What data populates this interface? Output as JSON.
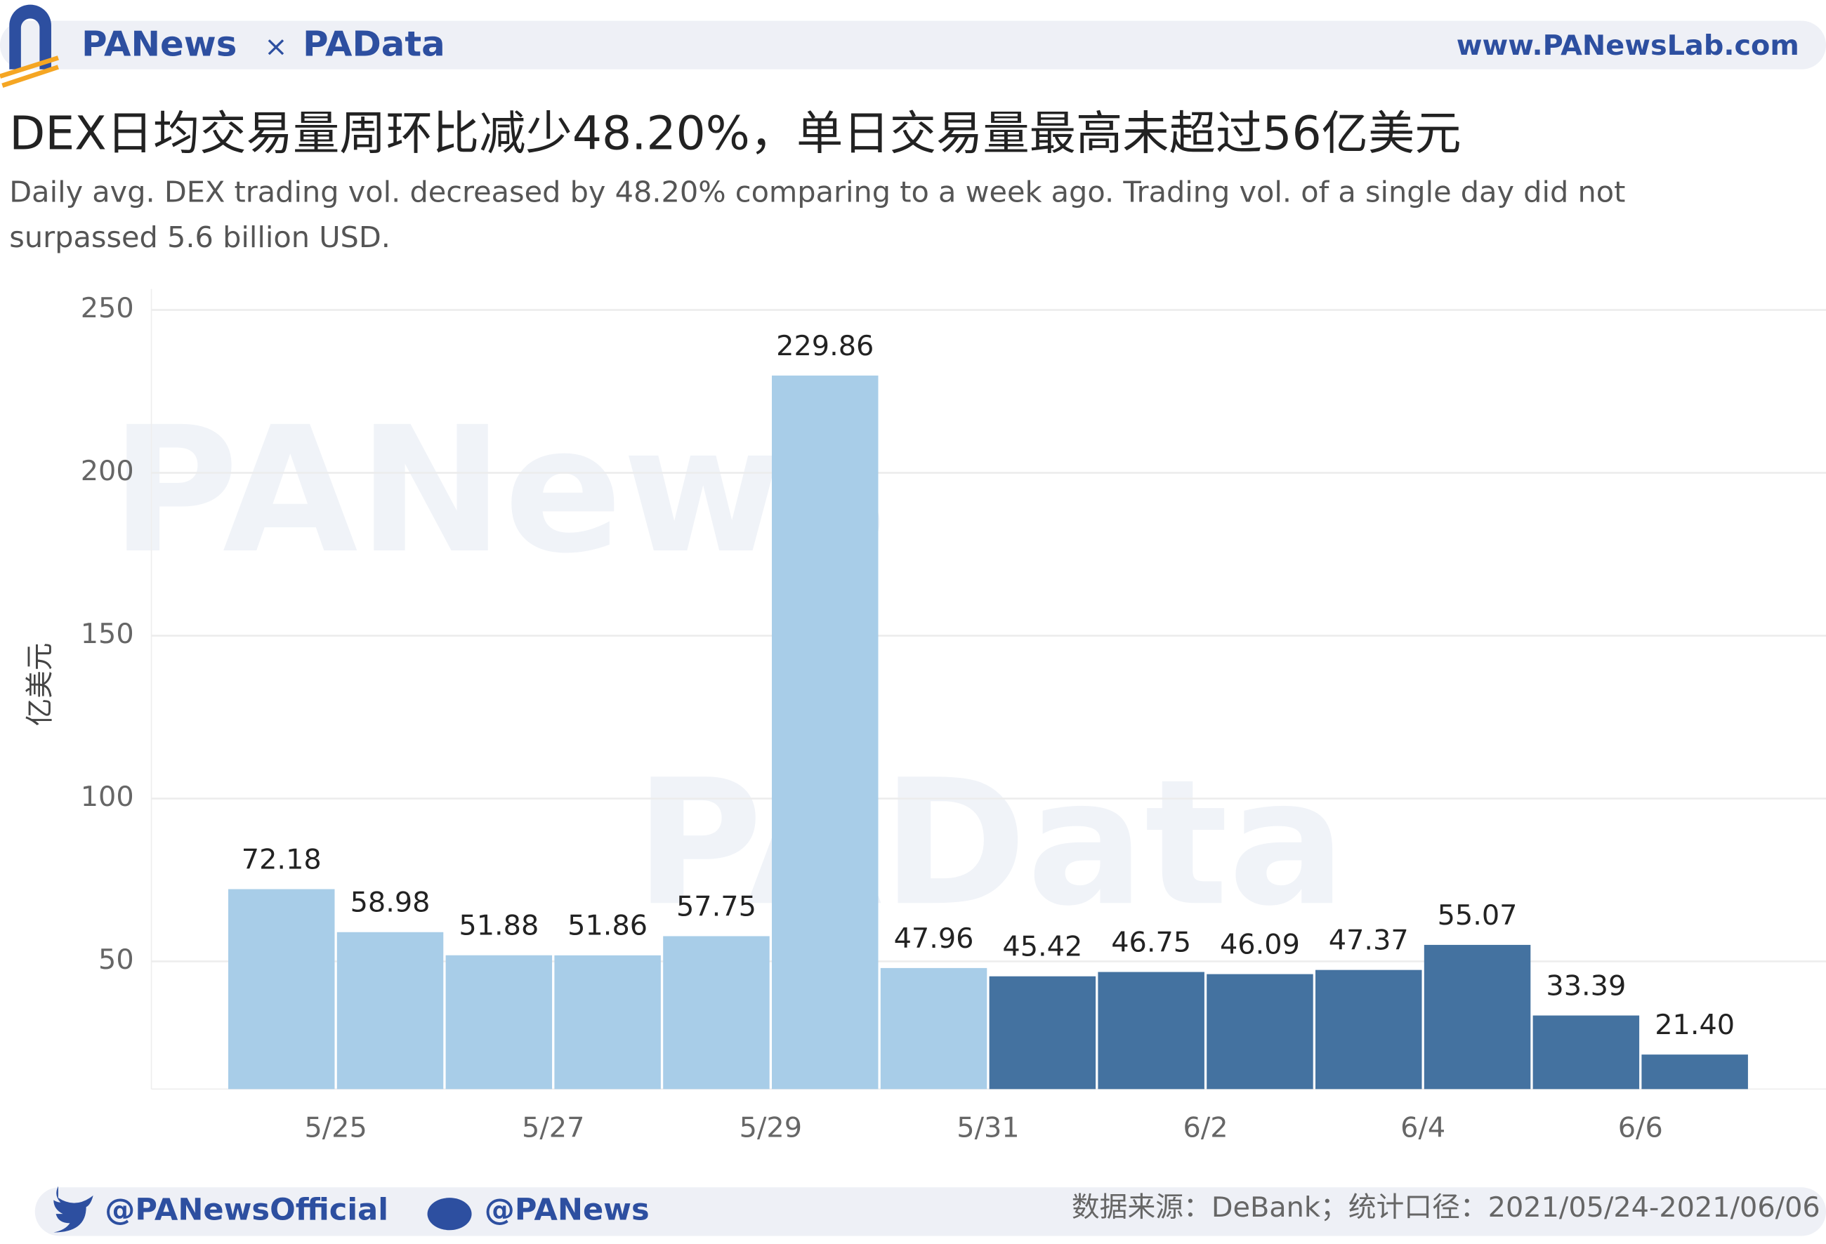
{
  "header": {
    "brand": "PANews",
    "separator": "×",
    "brand2": "PAData",
    "url": "www.PANewsLab.com"
  },
  "chart_data": {
    "type": "bar",
    "title": "DEX日均交易量周环比减少48.20%，单日交易量最高未超过56亿美元",
    "subtitle": [
      "Daily avg. DEX trading vol. decreased by 48.20% comparing to a week ago. Trading vol. of a single day did not",
      "surpassed 5.6 billion USD."
    ],
    "y_label": "亿美元",
    "watermarks": [
      "PANews",
      "PAData"
    ],
    "categories": [
      null,
      "5/25",
      null,
      "5/27",
      null,
      "5/29",
      null,
      "5/31",
      null,
      "6/2",
      null,
      "6/4",
      null,
      "6/6"
    ],
    "values": [
      72.18,
      58.98,
      51.88,
      51.86,
      57.75,
      229.86,
      47.96,
      45.42,
      46.75,
      46.09,
      47.37,
      55.07,
      33.39,
      21.4
    ],
    "value_labels": [
      "72.18",
      "58.98",
      "51.88",
      "51.86",
      "57.75",
      "229.86",
      "47.96",
      "45.42",
      "46.75",
      "46.09",
      "47.37",
      "55.07",
      "33.39",
      "21.40"
    ],
    "colors": [
      "#a8cde8",
      "#a8cde8",
      "#a8cde8",
      "#a8cde8",
      "#a8cde8",
      "#a8cde8",
      "#a8cde8",
      "#4472a0",
      "#4472a0",
      "#4472a0",
      "#4472a0",
      "#4472a0",
      "#4472a0",
      "#4472a0"
    ],
    "ylim": [
      10.8,
      255
    ],
    "yticks": [
      50,
      100,
      150,
      200,
      250
    ],
    "grid": true
  },
  "footer": {
    "twitter": "@PANewsOfficial",
    "weibo": "@PANews",
    "source": "数据来源：DeBank；统计口径：2021/05/24-2021/06/06"
  }
}
